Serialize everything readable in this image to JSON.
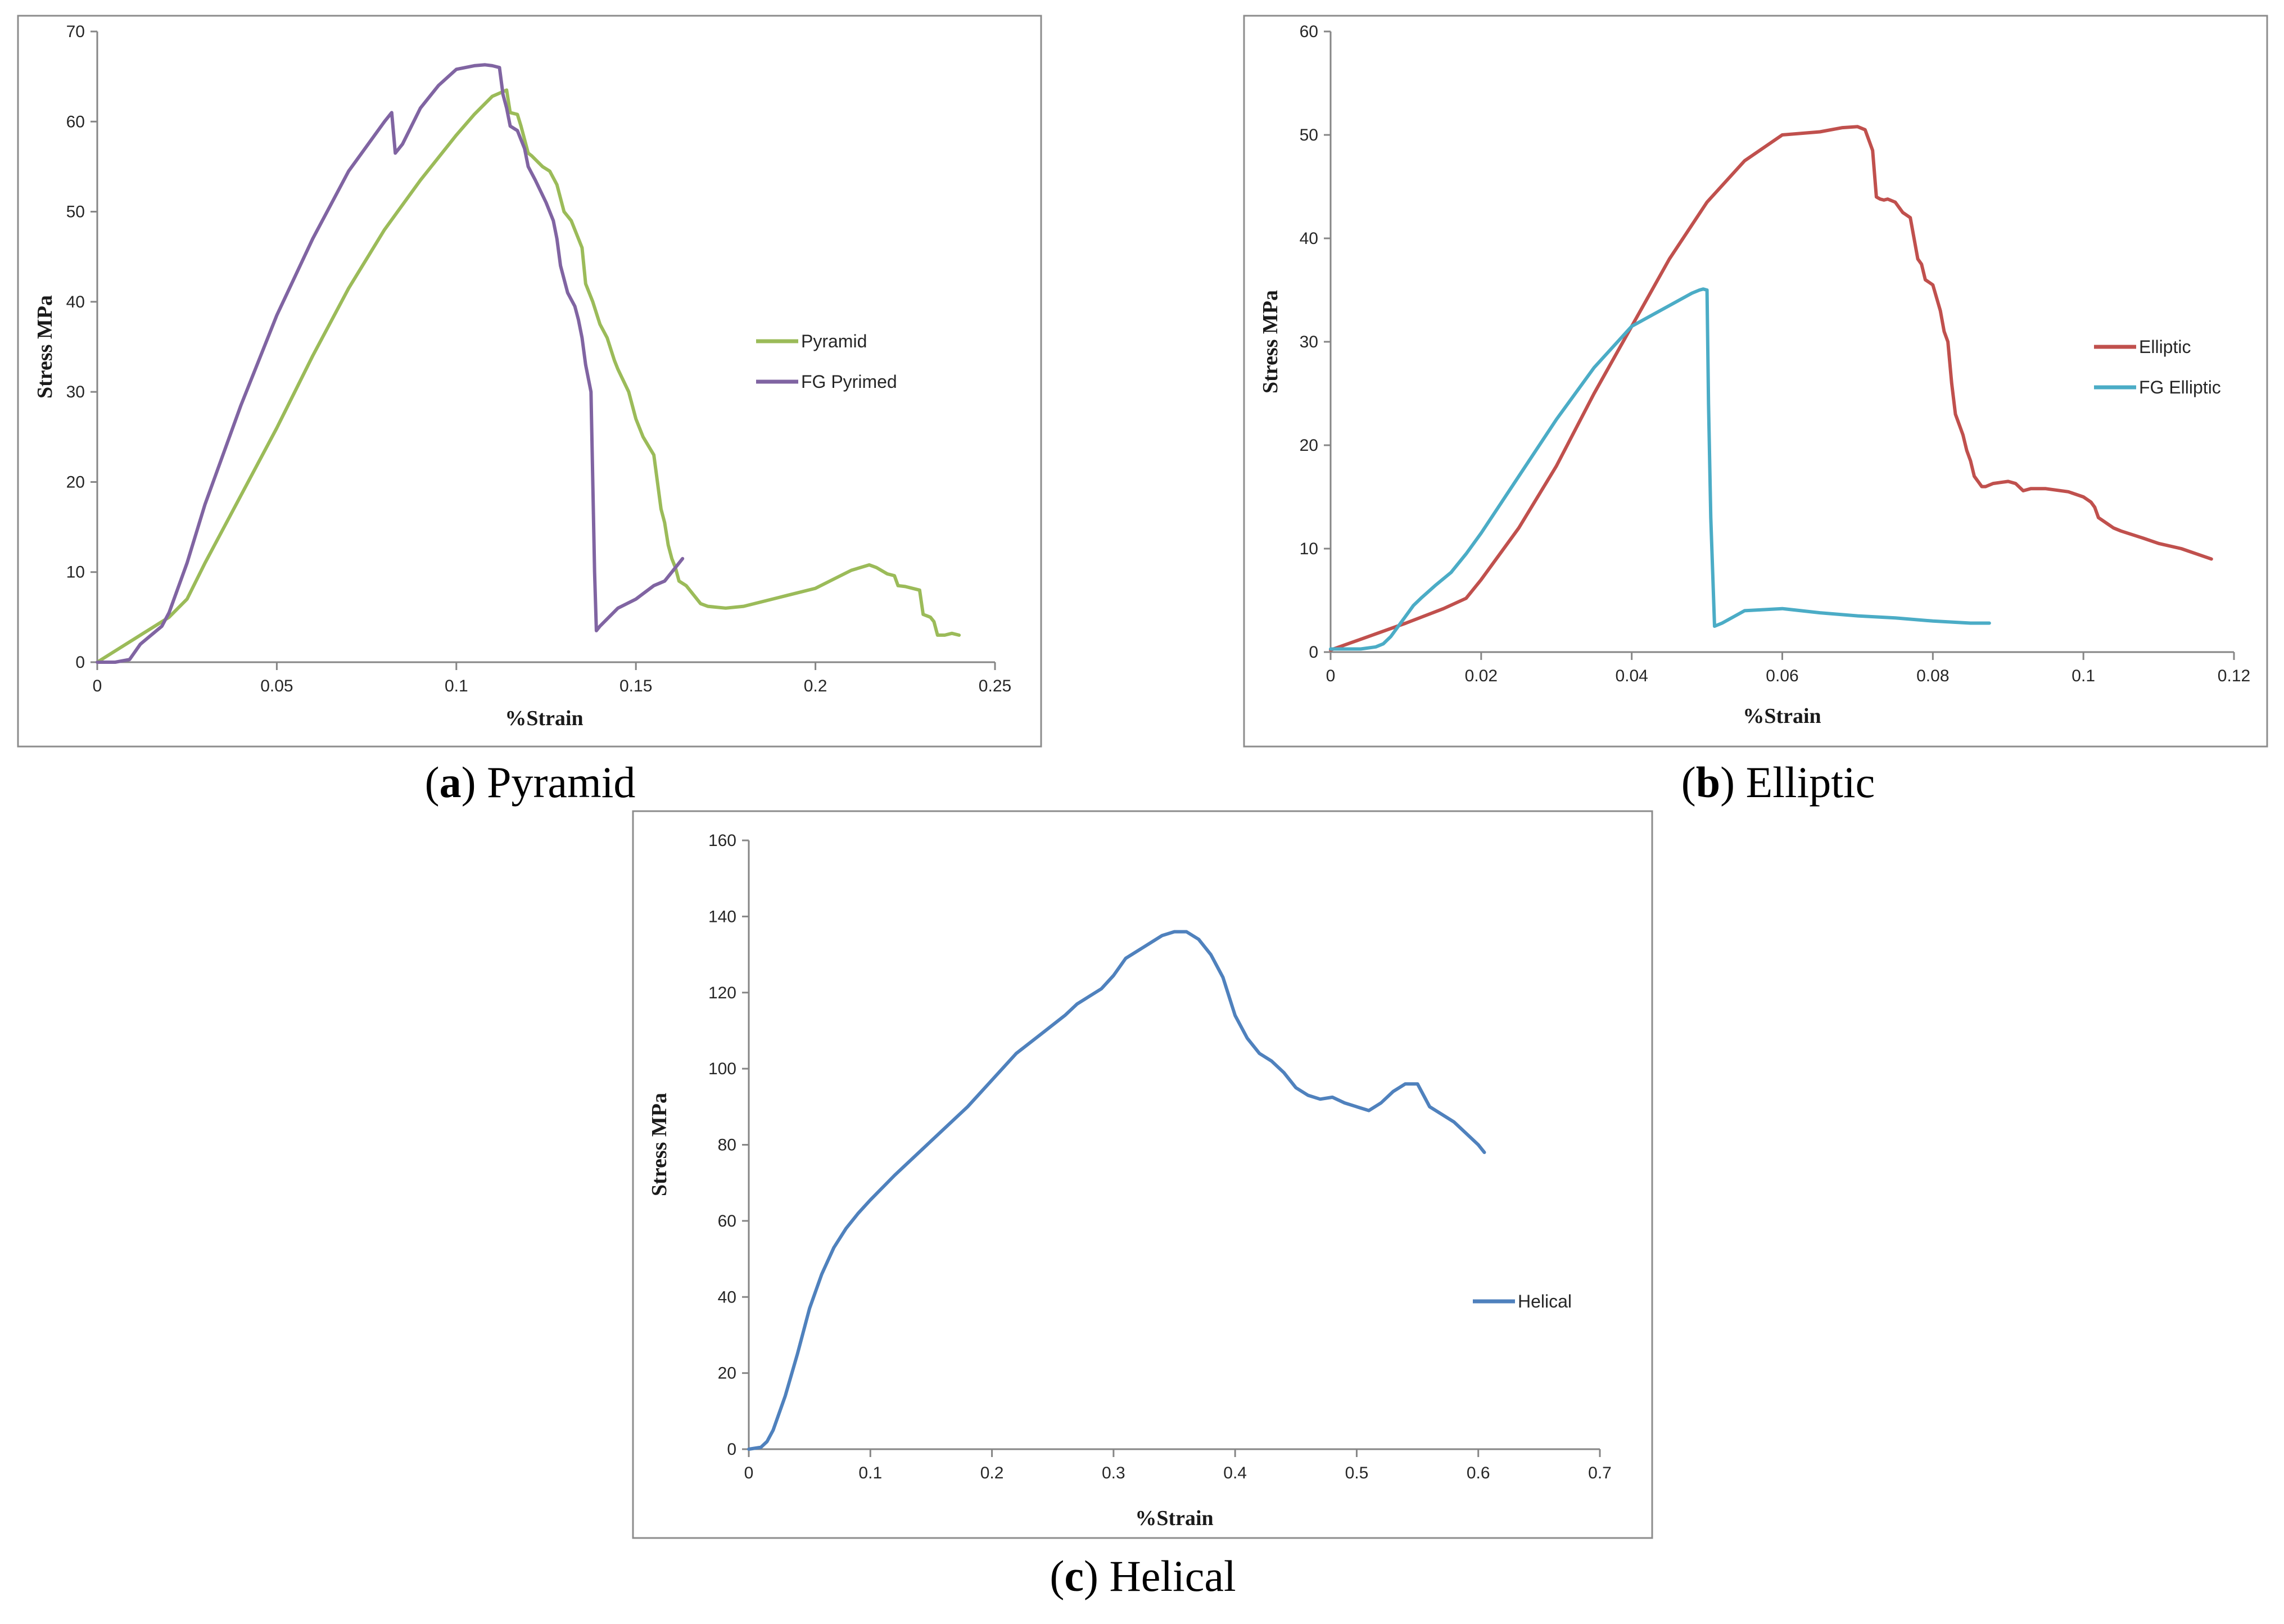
{
  "chart_data": [
    {
      "id": "a",
      "type": "line",
      "caption_letter": "a",
      "caption_text": "Pyramid",
      "xlabel": "%Strain",
      "ylabel": "Stress MPa",
      "xlim": [
        0,
        0.25
      ],
      "ylim": [
        0,
        70
      ],
      "xticks": [
        0,
        0.05,
        0.1,
        0.15,
        0.2,
        0.25
      ],
      "xtick_labels": [
        "0",
        "0.05",
        "0.1",
        "0.15",
        "0.2",
        "0.25"
      ],
      "yticks": [
        0,
        10,
        20,
        30,
        40,
        50,
        60,
        70
      ],
      "ytick_labels": [
        "0",
        "10",
        "20",
        "30",
        "40",
        "50",
        "60",
        "70"
      ],
      "legend_position": "right",
      "series": [
        {
          "name": "Pyramid",
          "color": "#9bbb59",
          "x": [
            0,
            0.01,
            0.02,
            0.025,
            0.03,
            0.04,
            0.05,
            0.06,
            0.07,
            0.08,
            0.09,
            0.1,
            0.105,
            0.11,
            0.114,
            0.115,
            0.117,
            0.118,
            0.12,
            0.121,
            0.124,
            0.126,
            0.128,
            0.13,
            0.132,
            0.134,
            0.135,
            0.136,
            0.138,
            0.14,
            0.142,
            0.144,
            0.145,
            0.148,
            0.15,
            0.152,
            0.155,
            0.156,
            0.157,
            0.158,
            0.159,
            0.16,
            0.161,
            0.162,
            0.164,
            0.166,
            0.168,
            0.17,
            0.175,
            0.18,
            0.19,
            0.2,
            0.205,
            0.21,
            0.215,
            0.217,
            0.22,
            0.222,
            0.223,
            0.225,
            0.228,
            0.229,
            0.23,
            0.232,
            0.233,
            0.234,
            0.236,
            0.238,
            0.24
          ],
          "y": [
            0,
            2.5,
            5,
            7,
            11,
            18.5,
            26,
            34,
            41.5,
            48,
            53.5,
            58.5,
            60.8,
            62.8,
            63.5,
            61,
            60.8,
            59.5,
            56.5,
            56.2,
            55,
            54.5,
            53,
            50,
            49,
            47,
            46,
            42,
            40,
            37.5,
            36,
            33.5,
            32.5,
            30,
            27,
            25,
            23,
            20,
            17,
            15.5,
            13,
            11.5,
            10.5,
            9,
            8.5,
            7.5,
            6.5,
            6.2,
            6.0,
            6.2,
            7.2,
            8.2,
            9.2,
            10.2,
            10.8,
            10.5,
            9.8,
            9.6,
            8.5,
            8.4,
            8.1,
            8.0,
            5.3,
            5.0,
            4.5,
            3.0,
            3.0,
            3.2,
            3.0
          ]
        },
        {
          "name": "FG Pyrimed",
          "color": "#8064a2",
          "x": [
            0,
            0.005,
            0.009,
            0.012,
            0.015,
            0.018,
            0.02,
            0.025,
            0.03,
            0.04,
            0.05,
            0.06,
            0.07,
            0.08,
            0.082,
            0.083,
            0.085,
            0.09,
            0.095,
            0.1,
            0.105,
            0.108,
            0.11,
            0.112,
            0.113,
            0.114,
            0.115,
            0.117,
            0.119,
            0.12,
            0.122,
            0.125,
            0.127,
            0.128,
            0.129,
            0.131,
            0.133,
            0.134,
            0.135,
            0.136,
            0.1375,
            0.138,
            0.1385,
            0.139,
            0.14,
            0.145,
            0.15,
            0.155,
            0.158,
            0.16,
            0.163
          ],
          "y": [
            0,
            0,
            0.3,
            2,
            3,
            4,
            5.5,
            11,
            17.5,
            28.5,
            38.5,
            47,
            54.5,
            60,
            61,
            56.5,
            57.5,
            61.5,
            64,
            65.8,
            66.2,
            66.3,
            66.2,
            66.0,
            63,
            61.5,
            59.5,
            59,
            57,
            55,
            53.5,
            51,
            49,
            47,
            44,
            41,
            39.5,
            38,
            36,
            33,
            30,
            20,
            10,
            3.5,
            4,
            6,
            7,
            8.5,
            9,
            10,
            11.5
          ]
        }
      ]
    },
    {
      "id": "b",
      "type": "line",
      "caption_letter": "b",
      "caption_text": "Elliptic",
      "xlabel": "%Strain",
      "ylabel": "Stress MPa",
      "xlim": [
        0,
        0.12
      ],
      "ylim": [
        0,
        60
      ],
      "xticks": [
        0,
        0.02,
        0.04,
        0.06,
        0.08,
        0.1,
        0.12
      ],
      "xtick_labels": [
        "0",
        "0.02",
        "0.04",
        "0.06",
        "0.08",
        "0.1",
        "0.12"
      ],
      "yticks": [
        0,
        10,
        20,
        30,
        40,
        50,
        60
      ],
      "ytick_labels": [
        "0",
        "10",
        "20",
        "30",
        "40",
        "50",
        "60"
      ],
      "legend_position": "right",
      "series": [
        {
          "name": "Elliptic",
          "color": "#c0504d",
          "x": [
            0,
            0.005,
            0.01,
            0.015,
            0.018,
            0.02,
            0.025,
            0.03,
            0.035,
            0.04,
            0.045,
            0.05,
            0.055,
            0.06,
            0.065,
            0.068,
            0.07,
            0.071,
            0.0715,
            0.072,
            0.0725,
            0.073,
            0.0735,
            0.074,
            0.075,
            0.076,
            0.077,
            0.0775,
            0.078,
            0.0785,
            0.079,
            0.08,
            0.081,
            0.0815,
            0.082,
            0.0825,
            0.083,
            0.0835,
            0.084,
            0.0845,
            0.085,
            0.0855,
            0.086,
            0.0865,
            0.087,
            0.088,
            0.09,
            0.091,
            0.092,
            0.093,
            0.095,
            0.098,
            0.1,
            0.101,
            0.1015,
            0.102,
            0.103,
            0.104,
            0.105,
            0.108,
            0.11,
            0.113,
            0.115,
            0.117
          ],
          "y": [
            0.2,
            1.5,
            2.8,
            4.2,
            5.2,
            7,
            12,
            18,
            25,
            31.5,
            38,
            43.5,
            47.5,
            50,
            50.3,
            50.7,
            50.8,
            50.5,
            49.5,
            48.5,
            44,
            43.8,
            43.7,
            43.8,
            43.5,
            42.5,
            42,
            40,
            38,
            37.5,
            36,
            35.5,
            33,
            31,
            30,
            26,
            23,
            22,
            21,
            19.5,
            18.5,
            17,
            16.5,
            16,
            16,
            16.3,
            16.5,
            16.3,
            15.6,
            15.8,
            15.8,
            15.5,
            15,
            14.5,
            14,
            13,
            12.5,
            12,
            11.7,
            11,
            10.5,
            10,
            9.5,
            9.0
          ]
        },
        {
          "name": "FG Elliptic",
          "color": "#4bacc6",
          "x": [
            0,
            0.004,
            0.006,
            0.007,
            0.008,
            0.009,
            0.01,
            0.011,
            0.012,
            0.014,
            0.016,
            0.018,
            0.02,
            0.025,
            0.03,
            0.035,
            0.04,
            0.045,
            0.048,
            0.049,
            0.0495,
            0.05,
            0.0502,
            0.0505,
            0.051,
            0.052,
            0.055,
            0.06,
            0.065,
            0.07,
            0.075,
            0.08,
            0.085,
            0.0875
          ],
          "y": [
            0.3,
            0.3,
            0.5,
            0.8,
            1.5,
            2.5,
            3.5,
            4.5,
            5.2,
            6.5,
            7.7,
            9.5,
            11.5,
            17,
            22.5,
            27.5,
            31.5,
            33.5,
            34.7,
            35.0,
            35.1,
            35.0,
            24,
            13,
            2.5,
            2.8,
            4.0,
            4.2,
            3.8,
            3.5,
            3.3,
            3.0,
            2.8,
            2.8
          ]
        }
      ]
    },
    {
      "id": "c",
      "type": "line",
      "caption_letter": "c",
      "caption_text": "Helical",
      "xlabel": "%Strain",
      "ylabel": "Stress MPa",
      "xlim": [
        0,
        0.7
      ],
      "ylim": [
        0,
        160
      ],
      "xticks": [
        0,
        0.1,
        0.2,
        0.3,
        0.4,
        0.5,
        0.6,
        0.7
      ],
      "xtick_labels": [
        "0",
        "0.1",
        "0.2",
        "0.3",
        "0.4",
        "0.5",
        "0.6",
        "0.7"
      ],
      "yticks": [
        0,
        20,
        40,
        60,
        80,
        100,
        120,
        140,
        160
      ],
      "ytick_labels": [
        "0",
        "20",
        "40",
        "60",
        "80",
        "100",
        "120",
        "140",
        "160"
      ],
      "legend_position": "right",
      "series": [
        {
          "name": "Helical",
          "color": "#4f81bd",
          "x": [
            0,
            0.01,
            0.015,
            0.02,
            0.03,
            0.04,
            0.05,
            0.06,
            0.07,
            0.08,
            0.09,
            0.1,
            0.12,
            0.15,
            0.18,
            0.2,
            0.22,
            0.24,
            0.26,
            0.27,
            0.28,
            0.29,
            0.3,
            0.31,
            0.32,
            0.33,
            0.34,
            0.35,
            0.36,
            0.37,
            0.38,
            0.39,
            0.4,
            0.41,
            0.42,
            0.43,
            0.44,
            0.45,
            0.46,
            0.47,
            0.48,
            0.49,
            0.5,
            0.51,
            0.52,
            0.53,
            0.54,
            0.55,
            0.56,
            0.57,
            0.58,
            0.59,
            0.6,
            0.605
          ],
          "y": [
            0,
            0.5,
            2,
            5,
            14,
            25,
            37,
            46,
            53,
            58,
            62,
            65.5,
            72,
            81,
            90,
            97,
            104,
            109,
            114,
            117,
            119,
            121,
            124.5,
            129,
            131,
            133,
            135,
            136,
            136,
            134,
            130,
            124,
            114,
            108,
            104,
            102,
            99,
            95,
            93,
            92,
            92.5,
            91,
            90,
            89,
            91,
            94,
            96,
            96,
            90,
            88,
            86,
            83,
            80,
            78
          ]
        }
      ]
    }
  ]
}
